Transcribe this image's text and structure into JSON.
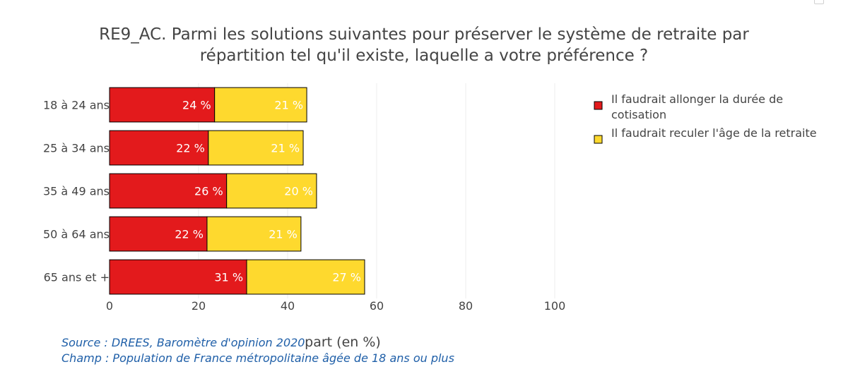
{
  "chart_data": {
    "type": "bar",
    "orientation": "horizontal",
    "stacked": true,
    "title_lines": [
      "RE9_AC. Parmi les solutions suivantes pour préserver le système de retraite par",
      "répartition tel qu'il existe, laquelle a votre préférence ?"
    ],
    "categories": [
      "18 à 24 ans",
      "25 à 34 ans",
      "35 à 49 ans",
      "50 à 64 ans",
      "65 ans et +"
    ],
    "series": [
      {
        "name": "Il faudrait allonger la durée de cotisation",
        "legend_lines": [
          "Il faudrait allonger la durée de",
          "cotisation"
        ],
        "color": "#e31a1c",
        "values": [
          23.6,
          22.2,
          26.3,
          21.9,
          30.8
        ],
        "labels": [
          "24 %",
          "22 %",
          "26 %",
          "22 %",
          "31 %"
        ]
      },
      {
        "name": "Il faudrait reculer l'âge de la retraite",
        "legend_lines": [
          "Il faudrait reculer l'âge de la retraite"
        ],
        "color": "#fed92e",
        "values": [
          20.7,
          21.3,
          20.2,
          21.1,
          26.5
        ],
        "labels": [
          "21 %",
          "21 %",
          "20 %",
          "21 %",
          "27 %"
        ]
      }
    ],
    "xlim": [
      0,
      100
    ],
    "xticks": [
      0,
      20,
      40,
      60,
      80,
      100
    ],
    "xlabel": "part (en %)",
    "ylabel": "",
    "grid": true,
    "legend_position": "top-right"
  },
  "notes": {
    "source": "Source : DREES, Baromètre d'opinion 2020",
    "champ": "Champ : Population de France métropolitaine âgée de 18 ans ou plus"
  }
}
